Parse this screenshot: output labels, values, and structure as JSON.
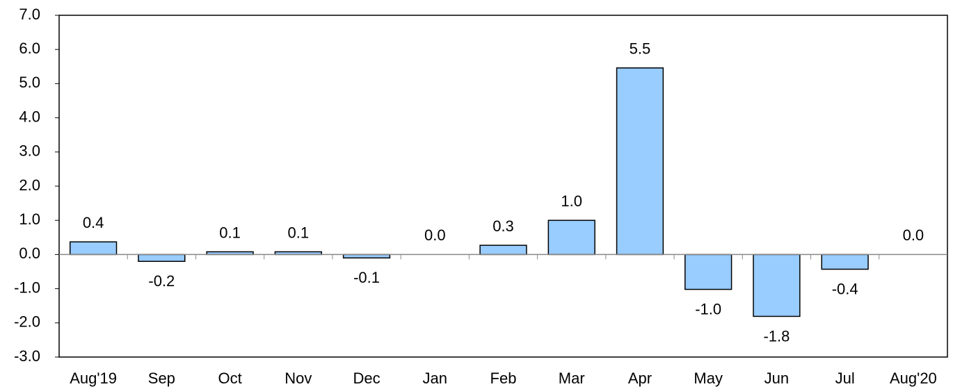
{
  "chart_data": {
    "type": "bar",
    "categories": [
      "Aug'19",
      "Sep",
      "Oct",
      "Nov",
      "Dec",
      "Jan",
      "Feb",
      "Mar",
      "Apr",
      "May",
      "Jun",
      "Jul",
      "Aug'20"
    ],
    "values": [
      0.37,
      -0.2,
      0.08,
      0.08,
      -0.1,
      0,
      0.27,
      1.0,
      5.46,
      -1.02,
      -1.81,
      -0.43,
      0
    ],
    "value_labels": [
      "0.4",
      "-0.2",
      "0.1",
      "0.1",
      "-0.1",
      "0.0",
      "0.3",
      "1.0",
      "5.5",
      "-1.0",
      "-1.8",
      "-0.4",
      "0.0"
    ],
    "color": "#99ccff",
    "ylim": [
      -3,
      7
    ],
    "yticks": [
      {
        "value": -3,
        "label": "-3.0"
      },
      {
        "value": -2,
        "label": "-2.0"
      },
      {
        "value": -1,
        "label": "-1.0"
      },
      {
        "value": 0,
        "label": "0.0"
      },
      {
        "value": 1,
        "label": "1.0"
      },
      {
        "value": 2,
        "label": "2.0"
      },
      {
        "value": 3,
        "label": "3.0"
      },
      {
        "value": 4,
        "label": "4.0"
      },
      {
        "value": 5,
        "label": "5.0"
      },
      {
        "value": 6,
        "label": "6.0"
      },
      {
        "value": 7,
        "label": "7.0"
      }
    ],
    "grid": false
  }
}
